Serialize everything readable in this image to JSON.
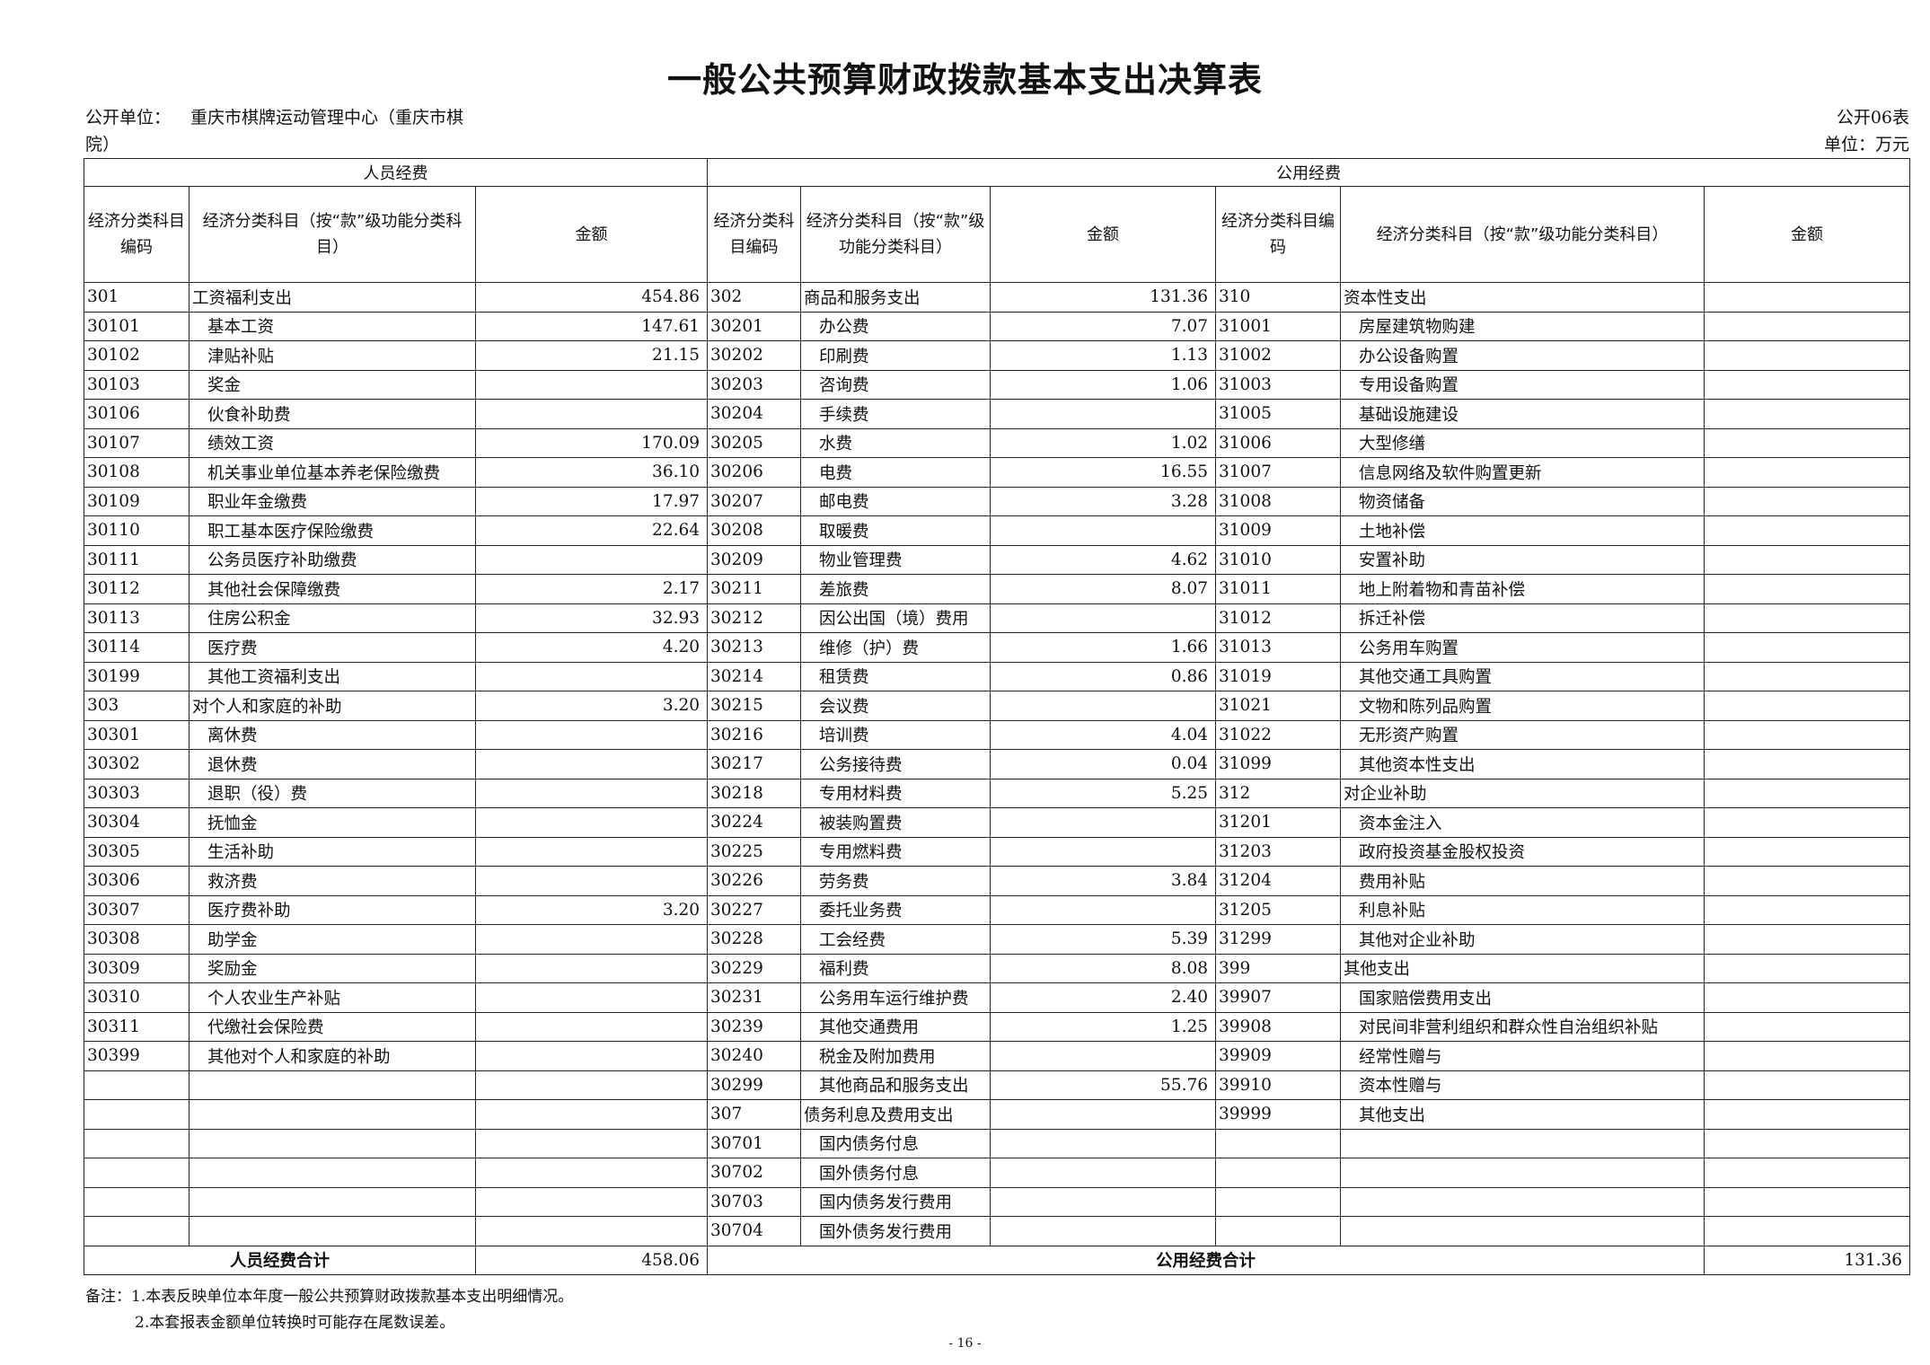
{
  "title": "一般公共预算财政拨款基本支出决算表",
  "unit_label": "公开单位：",
  "unit_name": "重庆市棋牌运动管理中心（重庆市棋院）",
  "table_no": "公开06表",
  "currency_unit": "单位：万元",
  "headers": {
    "personnel": "人员经费",
    "public": "公用经费",
    "code": "经济分类科目编码",
    "subject": "经济分类科目（按“款”级功能分类科目）",
    "amount": "金额"
  },
  "rows": [
    [
      "301",
      "工资福利支出",
      "454.86",
      "302",
      "商品和服务支出",
      "131.36",
      "310",
      "资本性支出",
      ""
    ],
    [
      "30101",
      "基本工资",
      "147.61",
      "30201",
      "办公费",
      "7.07",
      "31001",
      "房屋建筑物购建",
      ""
    ],
    [
      "30102",
      "津贴补贴",
      "21.15",
      "30202",
      "印刷费",
      "1.13",
      "31002",
      "办公设备购置",
      ""
    ],
    [
      "30103",
      "奖金",
      "",
      "30203",
      "咨询费",
      "1.06",
      "31003",
      "专用设备购置",
      ""
    ],
    [
      "30106",
      "伙食补助费",
      "",
      "30204",
      "手续费",
      "",
      "31005",
      "基础设施建设",
      ""
    ],
    [
      "30107",
      "绩效工资",
      "170.09",
      "30205",
      "水费",
      "1.02",
      "31006",
      "大型修缮",
      ""
    ],
    [
      "30108",
      "机关事业单位基本养老保险缴费",
      "36.10",
      "30206",
      "电费",
      "16.55",
      "31007",
      "信息网络及软件购置更新",
      ""
    ],
    [
      "30109",
      "职业年金缴费",
      "17.97",
      "30207",
      "邮电费",
      "3.28",
      "31008",
      "物资储备",
      ""
    ],
    [
      "30110",
      "职工基本医疗保险缴费",
      "22.64",
      "30208",
      "取暖费",
      "",
      "31009",
      "土地补偿",
      ""
    ],
    [
      "30111",
      "公务员医疗补助缴费",
      "",
      "30209",
      "物业管理费",
      "4.62",
      "31010",
      "安置补助",
      ""
    ],
    [
      "30112",
      "其他社会保障缴费",
      "2.17",
      "30211",
      "差旅费",
      "8.07",
      "31011",
      "地上附着物和青苗补偿",
      ""
    ],
    [
      "30113",
      "住房公积金",
      "32.93",
      "30212",
      "因公出国（境）费用",
      "",
      "31012",
      "拆迁补偿",
      ""
    ],
    [
      "30114",
      "医疗费",
      "4.20",
      "30213",
      "维修（护）费",
      "1.66",
      "31013",
      "公务用车购置",
      ""
    ],
    [
      "30199",
      "其他工资福利支出",
      "",
      "30214",
      "租赁费",
      "0.86",
      "31019",
      "其他交通工具购置",
      ""
    ],
    [
      "303",
      "对个人和家庭的补助",
      "3.20",
      "30215",
      "会议费",
      "",
      "31021",
      "文物和陈列品购置",
      ""
    ],
    [
      "30301",
      "离休费",
      "",
      "30216",
      "培训费",
      "4.04",
      "31022",
      "无形资产购置",
      ""
    ],
    [
      "30302",
      "退休费",
      "",
      "30217",
      "公务接待费",
      "0.04",
      "31099",
      "其他资本性支出",
      ""
    ],
    [
      "30303",
      "退职（役）费",
      "",
      "30218",
      "专用材料费",
      "5.25",
      "312",
      "对企业补助",
      ""
    ],
    [
      "30304",
      "抚恤金",
      "",
      "30224",
      "被装购置费",
      "",
      "31201",
      "资本金注入",
      ""
    ],
    [
      "30305",
      "生活补助",
      "",
      "30225",
      "专用燃料费",
      "",
      "31203",
      "政府投资基金股权投资",
      ""
    ],
    [
      "30306",
      "救济费",
      "",
      "30226",
      "劳务费",
      "3.84",
      "31204",
      "费用补贴",
      ""
    ],
    [
      "30307",
      "医疗费补助",
      "3.20",
      "30227",
      "委托业务费",
      "",
      "31205",
      "利息补贴",
      ""
    ],
    [
      "30308",
      "助学金",
      "",
      "30228",
      "工会经费",
      "5.39",
      "31299",
      "其他对企业补助",
      ""
    ],
    [
      "30309",
      "奖励金",
      "",
      "30229",
      "福利费",
      "8.08",
      "399",
      "其他支出",
      ""
    ],
    [
      "30310",
      "个人农业生产补贴",
      "",
      "30231",
      "公务用车运行维护费",
      "2.40",
      "39907",
      "国家赔偿费用支出",
      ""
    ],
    [
      "30311",
      "代缴社会保险费",
      "",
      "30239",
      "其他交通费用",
      "1.25",
      "39908",
      "对民间非营利组织和群众性自治组织补贴",
      ""
    ],
    [
      "30399",
      "其他对个人和家庭的补助",
      "",
      "30240",
      "税金及附加费用",
      "",
      "39909",
      "经常性赠与",
      ""
    ],
    [
      "",
      "",
      "",
      "30299",
      "其他商品和服务支出",
      "55.76",
      "39910",
      "资本性赠与",
      ""
    ],
    [
      "",
      "",
      "",
      "307",
      "债务利息及费用支出",
      "",
      "39999",
      "其他支出",
      ""
    ],
    [
      "",
      "",
      "",
      "30701",
      "国内债务付息",
      "",
      "",
      "",
      ""
    ],
    [
      "",
      "",
      "",
      "30702",
      "国外债务付息",
      "",
      "",
      "",
      ""
    ],
    [
      "",
      "",
      "",
      "30703",
      "国内债务发行费用",
      "",
      "",
      "",
      ""
    ],
    [
      "",
      "",
      "",
      "30704",
      "国外债务发行费用",
      "",
      "",
      "",
      ""
    ]
  ],
  "totals": {
    "personnel_label": "人员经费合计",
    "personnel_value": "458.06",
    "public_label": "公用经费合计",
    "public_value": "131.36"
  },
  "notes": [
    "备注：1.本表反映单位本年度一般公共预算财政拨款基本支出明细情况。",
    "2.本套报表金额单位转换时可能存在尾数误差。"
  ],
  "page_number": "- 16 -"
}
